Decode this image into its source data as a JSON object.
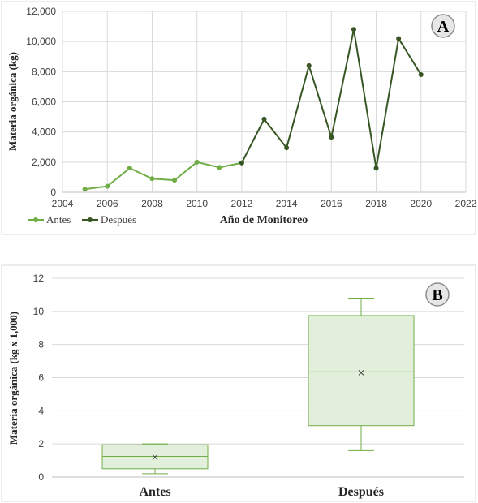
{
  "chart_data": [
    {
      "type": "line",
      "panel_label": "A",
      "title": "",
      "xlabel": "Año de Monitoreo",
      "ylabel": "Materia orgánica (kg)",
      "xlim": [
        2004,
        2022
      ],
      "ylim": [
        0,
        12000
      ],
      "x_ticks": [
        "2004",
        "2006",
        "2008",
        "2010",
        "2012",
        "2014",
        "2016",
        "2018",
        "2020",
        "2022"
      ],
      "y_ticks": [
        "0",
        "2,000",
        "4,000",
        "6,000",
        "8,000",
        "10,000",
        "12,000"
      ],
      "grid": true,
      "legend_position": "bottom-left",
      "series": [
        {
          "name": "Antes",
          "color": "#70ad47",
          "x": [
            2005,
            2006,
            2007,
            2008,
            2009,
            2010,
            2011,
            2012
          ],
          "y": [
            200,
            400,
            1600,
            900,
            800,
            2000,
            1650,
            1950
          ]
        },
        {
          "name": "Después",
          "color": "#375623",
          "x": [
            2012,
            2013,
            2014,
            2015,
            2016,
            2017,
            2018,
            2019,
            2020
          ],
          "y": [
            1950,
            4850,
            2950,
            8400,
            3650,
            10800,
            1600,
            10200,
            7800
          ]
        }
      ]
    },
    {
      "type": "box",
      "panel_label": "B",
      "title": "",
      "xlabel": "",
      "ylabel": "Materia orgánica (kg x 1,000)",
      "ylim": [
        0,
        12
      ],
      "y_ticks": [
        "0",
        "2",
        "4",
        "6",
        "8",
        "10",
        "12"
      ],
      "grid": true,
      "box_fill": "#e2efda",
      "box_stroke": "#70ad47",
      "categories": [
        "Antes",
        "Después"
      ],
      "boxes": [
        {
          "name": "Antes",
          "min": 0.2,
          "q1": 0.5,
          "median": 1.25,
          "q3": 1.95,
          "max": 2.0,
          "mean": 1.2
        },
        {
          "name": "Después",
          "min": 1.6,
          "q1": 3.1,
          "median": 6.35,
          "q3": 9.75,
          "max": 10.8,
          "mean": 6.3
        }
      ]
    }
  ]
}
